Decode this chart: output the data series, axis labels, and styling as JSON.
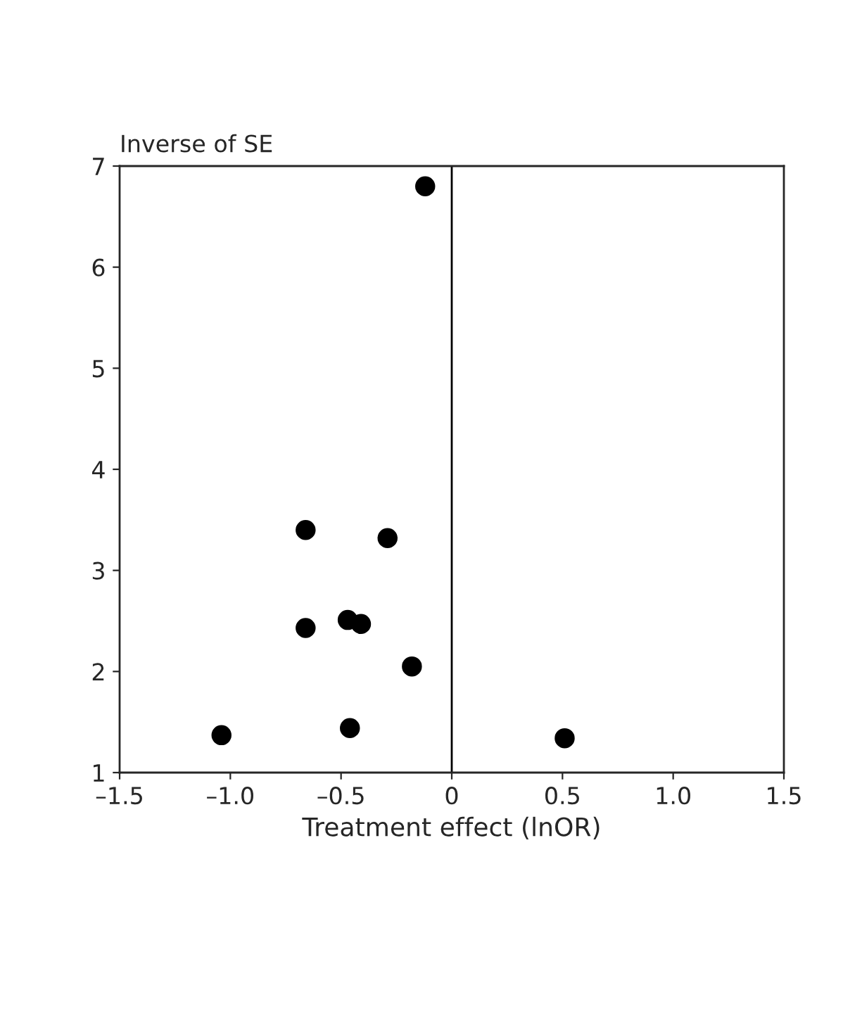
{
  "chart_data": {
    "type": "scatter",
    "xlabel": "Treatment effect (lnOR)",
    "ylabel": "Inverse of SE",
    "x": [
      -0.12,
      -0.66,
      -0.29,
      -0.47,
      -0.41,
      -0.66,
      -0.18,
      -1.04,
      -0.46,
      0.51
    ],
    "values": [
      6.8,
      3.4,
      3.32,
      2.51,
      2.47,
      2.43,
      2.05,
      1.37,
      1.44,
      1.34
    ],
    "color": "#000000",
    "marker": "circle",
    "xlim": [
      -1.5,
      1.5
    ],
    "xticks": [
      {
        "value": -1.5,
        "label": "–1.5"
      },
      {
        "value": -1.0,
        "label": "–1.0"
      },
      {
        "value": -0.5,
        "label": "–0.5"
      },
      0,
      {
        "value": 0.5,
        "label": "0.5"
      },
      {
        "value": 1.0,
        "label": "1.0"
      },
      {
        "value": 1.5,
        "label": "1.5"
      }
    ],
    "ylim": [
      1,
      7
    ],
    "yticks": [
      1,
      2,
      3,
      4,
      5,
      6,
      7
    ],
    "ref_lines": [
      {
        "axis": "x",
        "value": 0,
        "color": "#000000"
      }
    ],
    "grid": false
  }
}
